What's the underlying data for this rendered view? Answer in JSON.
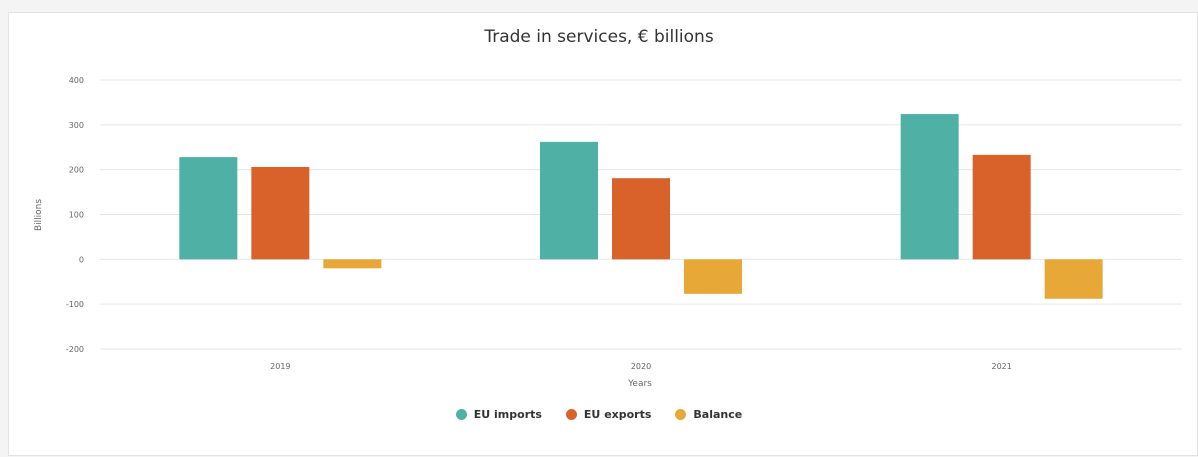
{
  "chart_data": {
    "type": "bar",
    "title": "Trade in services, € billions",
    "xlabel": "Years",
    "ylabel": "Billions",
    "categories": [
      "2019",
      "2020",
      "2021"
    ],
    "series": [
      {
        "name": "EU imports",
        "color": "#4fb0a5",
        "values": [
          228,
          262,
          324
        ]
      },
      {
        "name": "EU exports",
        "color": "#d9622b",
        "values": [
          206,
          181,
          233
        ]
      },
      {
        "name": "Balance",
        "color": "#e8a838",
        "values": [
          -20,
          -77,
          -88
        ]
      }
    ],
    "ylim": [
      -200,
      400
    ],
    "yticks": [
      400,
      300,
      200,
      100,
      0,
      -100,
      -200
    ],
    "grid": true,
    "legend_position": "bottom"
  }
}
